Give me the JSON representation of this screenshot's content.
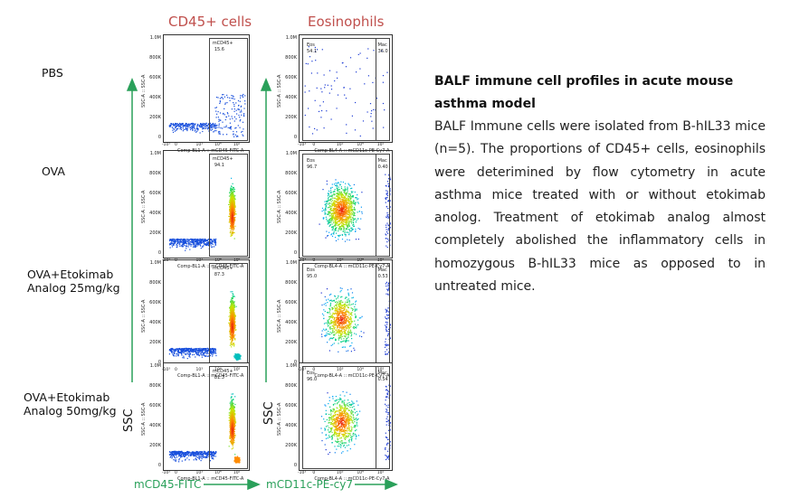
{
  "columns": {
    "left_title": "CD45+ cells",
    "right_title": "Eosinophils"
  },
  "rows": [
    {
      "label_line1": "PBS",
      "label_line2": "",
      "cd45": {
        "gate_name": "mCD45+",
        "value": "15.6"
      },
      "eos": {
        "eos_name": "Eos",
        "eos_value": "54.1",
        "mac_name": "Mac",
        "mac_value": "36.0"
      }
    },
    {
      "label_line1": "OVA",
      "label_line2": "",
      "cd45": {
        "gate_name": "mCD45+",
        "value": "94.1"
      },
      "eos": {
        "eos_name": "Eos",
        "eos_value": "96.7",
        "mac_name": "Mac",
        "mac_value": "0.40"
      }
    },
    {
      "label_line1": "OVA+Etokimab",
      "label_line2": "Analog 25mg/kg",
      "cd45": {
        "gate_name": "mCD45+",
        "value": "87.3"
      },
      "eos": {
        "eos_name": "Eos",
        "eos_value": "95.0",
        "mac_name": "Mac",
        "mac_value": "0.53"
      }
    },
    {
      "label_line1": "OVA+Etokimab",
      "label_line2": "Analog 50mg/kg",
      "cd45": {
        "gate_name": "mCD45+",
        "value": "81.3"
      },
      "eos": {
        "eos_name": "Eos",
        "eos_value": "96.0",
        "mac_name": "Mac",
        "mac_value": "0.54"
      }
    }
  ],
  "plot_axes": {
    "y_ticks": [
      "1.0M",
      "800K",
      "600K",
      "400K",
      "200K",
      "0"
    ],
    "x_ticks": [
      "-10³",
      "0",
      "10³",
      "10⁴",
      "10⁵"
    ],
    "y_label": "SSC-A :: SSC-A",
    "cd45_x_label": "Comp-BL1-A :: mCD45-FITC-A",
    "eos_x_label": "Comp-BL4-A :: mCD11c-PE-Cy7-A"
  },
  "ssc_label": "SSC",
  "bottom_axes": {
    "left": "mCD45-FITC",
    "right": "mCD11c-PE-cy7"
  },
  "description": {
    "title": "BALF immune cell profiles in acute mouse asthma model",
    "body": "BALF Immune cells were isolated from B-hIL33 mice (n=5). The proportions of CD45+ cells, eosinophils were deterimined by flow cytometry in acute asthma mice treated with or without etokimab anolog. Treatment of etokimab analog almost completely abolished the inflammatory cells in homozygous B-hIL33 mice as opposed to in untreated mice."
  },
  "colors": {
    "title_red": "#c0504d",
    "arrow_green": "#2aa05a",
    "dot_blue": "#1f2fd0"
  }
}
